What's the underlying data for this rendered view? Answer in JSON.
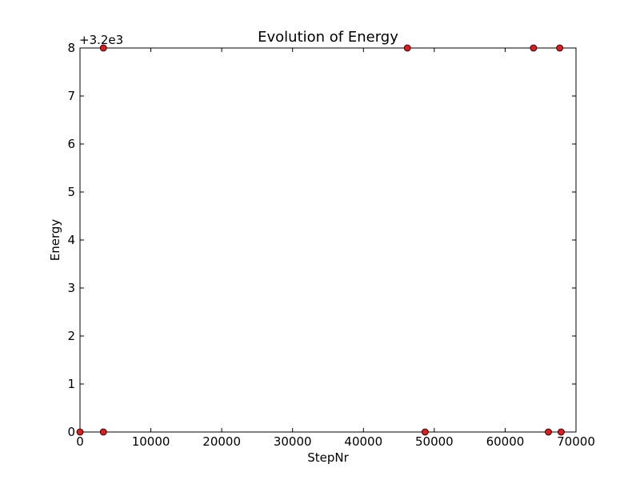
{
  "chart_data": {
    "type": "scatter",
    "title": "Evolution of Energy",
    "xlabel": "StepNr",
    "ylabel": "Energy",
    "y_offset_label": "+3.2e3",
    "xlim": [
      0,
      70000
    ],
    "ylim": [
      0,
      8
    ],
    "x_ticks": [
      0,
      10000,
      20000,
      30000,
      40000,
      50000,
      60000,
      70000
    ],
    "y_ticks": [
      0,
      1,
      2,
      3,
      4,
      5,
      6,
      7,
      8
    ],
    "grid": false,
    "marker_color": "#e31a1c",
    "marker_edge": "#000000",
    "points": [
      {
        "x": 0,
        "y": 0
      },
      {
        "x": 3300,
        "y": 8
      },
      {
        "x": 3300,
        "y": 0
      },
      {
        "x": 46200,
        "y": 8
      },
      {
        "x": 48700,
        "y": 0
      },
      {
        "x": 64000,
        "y": 8
      },
      {
        "x": 66100,
        "y": 0
      },
      {
        "x": 67700,
        "y": 8
      },
      {
        "x": 67900,
        "y": 0
      }
    ]
  }
}
